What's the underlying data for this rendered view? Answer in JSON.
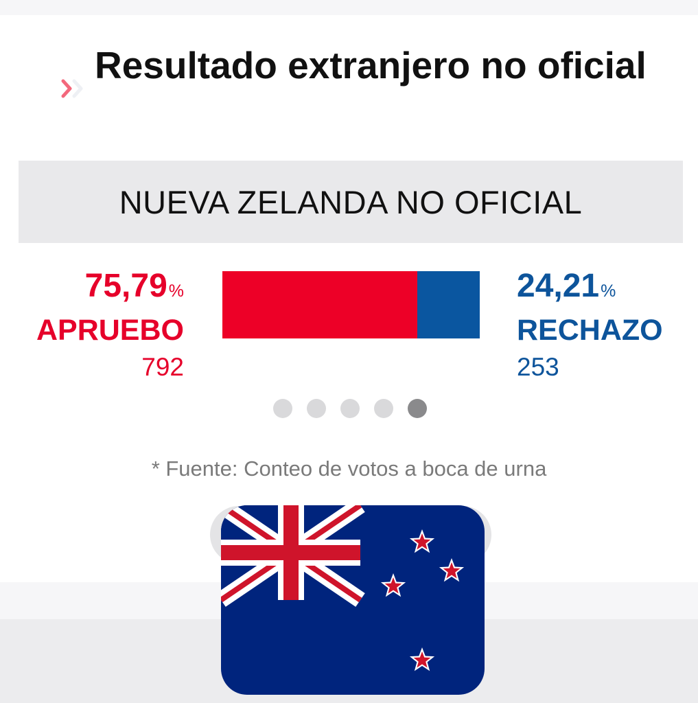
{
  "header": {
    "title": "Resultado extranjero no oficial",
    "chevron_icon": "chevron-right-double-icon"
  },
  "country": {
    "label": "NUEVA ZELANDA NO OFICIAL",
    "flag_icon": "new-zealand-flag-icon"
  },
  "results": {
    "apruebo": {
      "percent": "75,79",
      "percent_sign": "%",
      "label": "APRUEBO",
      "votes": "792",
      "share": 0.7579,
      "color": "#ed0027"
    },
    "rechazo": {
      "percent": "24,21",
      "percent_sign": "%",
      "label": "RECHAZO",
      "votes": "253",
      "share": 0.2421,
      "color": "#0a56a0"
    }
  },
  "carousel": {
    "total_pages": 5,
    "active_page": 5
  },
  "source_note": "* Fuente: Conteo de votos a boca de urna"
}
